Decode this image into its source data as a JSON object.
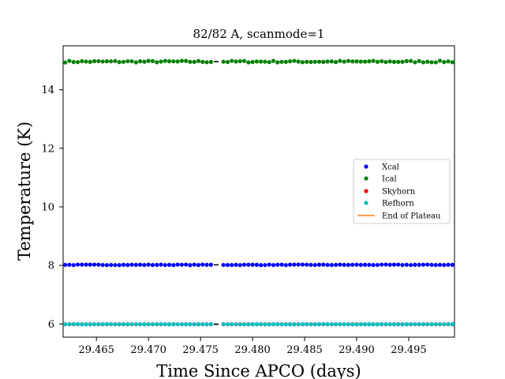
{
  "chart_data": {
    "type": "scatter",
    "title": "82/82 A, scanmode=1",
    "xlabel": "Time Since APCO (days)",
    "ylabel": "Temperature (K)",
    "xlim": [
      29.4618,
      29.4994
    ],
    "ylim": [
      5.55,
      15.5
    ],
    "x_ticks": [
      29.465,
      29.47,
      29.475,
      29.48,
      29.485,
      29.49,
      29.495
    ],
    "x_tick_labels": [
      "29.465",
      "29.470",
      "29.475",
      "29.480",
      "29.485",
      "29.490",
      "29.495"
    ],
    "y_ticks": [
      6,
      8,
      10,
      12,
      14
    ],
    "y_tick_labels": [
      "6",
      "8",
      "10",
      "12",
      "14"
    ],
    "grid": false,
    "legend_position": "center-right",
    "sampling": {
      "segment1": {
        "start": 29.462,
        "end": 29.476,
        "step": 0.0004
      },
      "segment2": {
        "start": 29.4772,
        "end": 29.4994,
        "step": 0.0004
      }
    },
    "series": [
      {
        "name": "Xcal",
        "color": "#0000ff",
        "marker": "dot",
        "value": 8.02,
        "noise": 0.01
      },
      {
        "name": "Ical",
        "color": "#008000",
        "marker": "dot",
        "value": 14.96,
        "noise": 0.03
      },
      {
        "name": "Skyhorn",
        "color": "#ff0000",
        "marker": "dot",
        "value": 5.99,
        "noise": 0.0
      },
      {
        "name": "Refhorn",
        "color": "#00bfbf",
        "marker": "dot",
        "value": 5.99,
        "noise": 0.005
      }
    ],
    "end_of_plateau": {
      "name": "End of Plateau",
      "color": "#ff7f0e",
      "black_marks_x": [
        29.4765
      ],
      "black_mark_color": "#000000"
    }
  }
}
